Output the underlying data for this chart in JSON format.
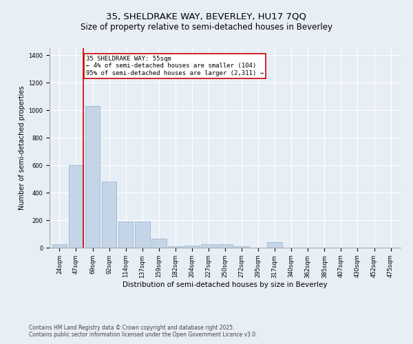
{
  "title1": "35, SHELDRAKE WAY, BEVERLEY, HU17 7QQ",
  "title2": "Size of property relative to semi-detached houses in Beverley",
  "xlabel": "Distribution of semi-detached houses by size in Beverley",
  "ylabel": "Number of semi-detached properties",
  "categories": [
    "24sqm",
    "47sqm",
    "69sqm",
    "92sqm",
    "114sqm",
    "137sqm",
    "159sqm",
    "182sqm",
    "204sqm",
    "227sqm",
    "250sqm",
    "272sqm",
    "295sqm",
    "317sqm",
    "340sqm",
    "362sqm",
    "385sqm",
    "407sqm",
    "430sqm",
    "452sqm",
    "475sqm"
  ],
  "values": [
    25,
    600,
    1030,
    480,
    190,
    190,
    65,
    10,
    15,
    25,
    25,
    10,
    0,
    40,
    0,
    0,
    0,
    0,
    0,
    0,
    0
  ],
  "bar_color": "#c5d5e8",
  "bar_edge_color": "#8ab0cc",
  "subject_bar_index": 1,
  "subject_line_color": "#cc0000",
  "annotation_text": "35 SHELDRAKE WAY: 55sqm\n← 4% of semi-detached houses are smaller (104)\n95% of semi-detached houses are larger (2,311) →",
  "annotation_box_facecolor": "#ffffff",
  "annotation_box_edgecolor": "#cc0000",
  "ylim": [
    0,
    1450
  ],
  "yticks": [
    0,
    200,
    400,
    600,
    800,
    1000,
    1200,
    1400
  ],
  "bg_color": "#e8eef5",
  "footer1": "Contains HM Land Registry data © Crown copyright and database right 2025.",
  "footer2": "Contains public sector information licensed under the Open Government Licence v3.0.",
  "title_fontsize": 9.5,
  "subtitle_fontsize": 8.5,
  "tick_fontsize": 6,
  "ylabel_fontsize": 7,
  "xlabel_fontsize": 7.5,
  "footer_fontsize": 5.5,
  "annot_fontsize": 6.5
}
